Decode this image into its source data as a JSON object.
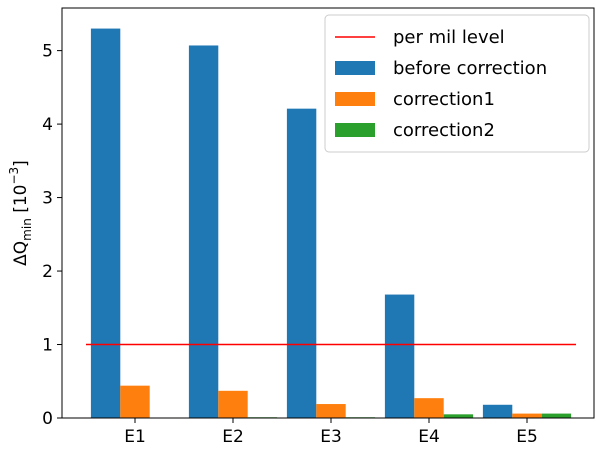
{
  "chart_data": {
    "type": "bar",
    "ylabel": {
      "base": "ΔQ",
      "sub": "min",
      "mid": " [10",
      "sup": "−3",
      "end": "]"
    },
    "categories": [
      "E1",
      "E2",
      "E3",
      "E4",
      "E5"
    ],
    "series": [
      {
        "name": "before correction",
        "color": "#1f77b4",
        "values": [
          5.3,
          5.07,
          4.21,
          1.68,
          0.18
        ]
      },
      {
        "name": "correction1",
        "color": "#ff7f0e",
        "values": [
          0.44,
          0.37,
          0.19,
          0.27,
          0.06
        ]
      },
      {
        "name": "correction2",
        "color": "#2ca02c",
        "values": [
          0.005,
          0.01,
          0.01,
          0.05,
          0.06
        ]
      }
    ],
    "reference_line": {
      "name": "per mil level",
      "color": "#ff0000",
      "value": 1
    },
    "ylim": [
      0,
      5.58
    ],
    "yticks": [
      0,
      1,
      2,
      3,
      4,
      5
    ],
    "legend": "upper right"
  }
}
